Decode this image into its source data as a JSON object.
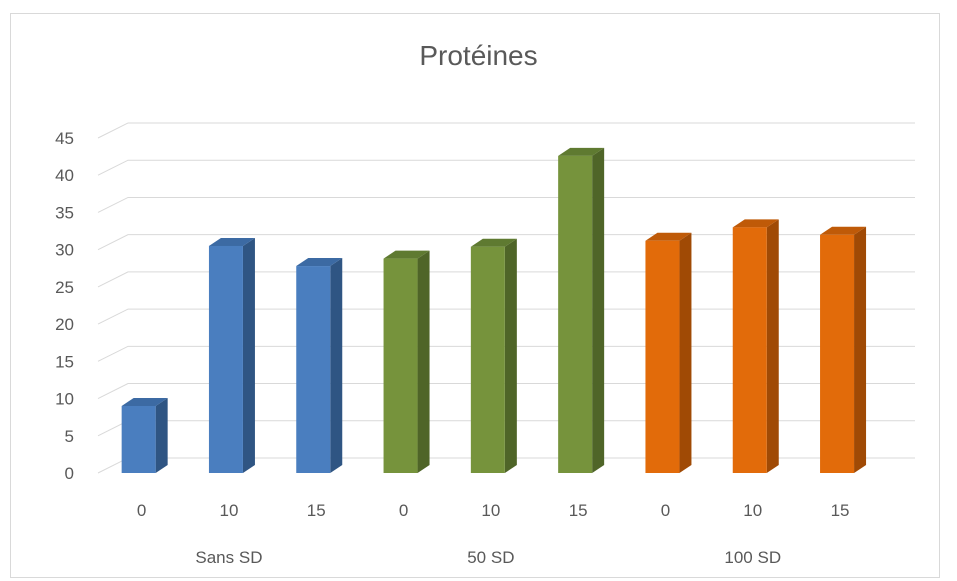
{
  "chart_data": {
    "type": "bar",
    "title": "Protéines",
    "ylim": [
      0,
      45
    ],
    "yticks": [
      0,
      5,
      10,
      15,
      20,
      25,
      30,
      35,
      40,
      45
    ],
    "grid": true,
    "legend": "none",
    "groups": [
      {
        "label": "Sans SD",
        "categories": [
          "0",
          "10",
          "15"
        ],
        "values": [
          9,
          30.5,
          27.8
        ],
        "color": "#4a7ebf",
        "side_color": "#2f5583",
        "top_color": "#3c6aa3"
      },
      {
        "label": "50 SD",
        "categories": [
          "0",
          "10",
          "15"
        ],
        "values": [
          28.8,
          30.4,
          42.6
        ],
        "color": "#76933c",
        "side_color": "#4f6528",
        "top_color": "#5f7a31"
      },
      {
        "label": "100 SD",
        "categories": [
          "0",
          "10",
          "15"
        ],
        "values": [
          31.2,
          33,
          32
        ],
        "color": "#e26b0a",
        "side_color": "#a04a05",
        "top_color": "#bf5a08"
      }
    ]
  }
}
